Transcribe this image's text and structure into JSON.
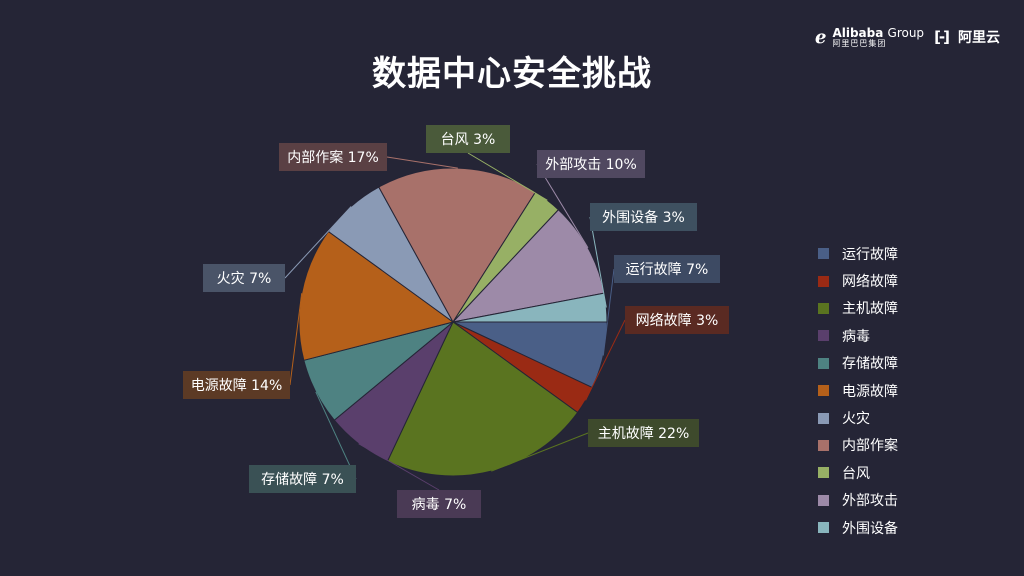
{
  "page": {
    "title": "数据中心安全挑战"
  },
  "logo": {
    "alibaba_name": "Alibaba",
    "alibaba_group": "Group",
    "alibaba_cn": "阿里巴巴集团",
    "cloud_name": "阿里云"
  },
  "chart_data": {
    "type": "pie",
    "title": "数据中心安全挑战",
    "slices": [
      {
        "label": "运行故障",
        "value": 7,
        "display": "运行故障 7%",
        "color": "#4a5f87",
        "label_bg": "#3d4a63"
      },
      {
        "label": "网络故障",
        "value": 3,
        "display": "网络故障 3%",
        "color": "#9a2a14",
        "label_bg": "#5a2a22"
      },
      {
        "label": "主机故障",
        "value": 22,
        "display": "主机故障 22%",
        "color": "#5a7420",
        "label_bg": "#3e4a2c"
      },
      {
        "label": "病毒",
        "value": 7,
        "display": "病毒 7%",
        "color": "#5a3f6c",
        "label_bg": "#4a3a55"
      },
      {
        "label": "存储故障",
        "value": 7,
        "display": "存储故障 7%",
        "color": "#4e8282",
        "label_bg": "#3a5155"
      },
      {
        "label": "电源故障",
        "value": 14,
        "display": "电源故障 14%",
        "color": "#b5601a",
        "label_bg": "#5c3a25"
      },
      {
        "label": "火灾",
        "value": 7,
        "display": "火灾 7%",
        "color": "#8a9ab5",
        "label_bg": "#4a5468"
      },
      {
        "label": "内部作案",
        "value": 17,
        "display": "内部作案 17%",
        "color": "#a8716a",
        "label_bg": "#5a4044"
      },
      {
        "label": "台风",
        "value": 3,
        "display": "台风 3%",
        "color": "#97b065",
        "label_bg": "#4a5a3a"
      },
      {
        "label": "外部攻击",
        "value": 10,
        "display": "外部攻击 10%",
        "color": "#9d8aa8",
        "label_bg": "#504860"
      },
      {
        "label": "外围设备",
        "value": 3,
        "display": "外围设备 3%",
        "color": "#89b5bd",
        "label_bg": "#3e5060"
      }
    ],
    "legend_position": "right"
  }
}
